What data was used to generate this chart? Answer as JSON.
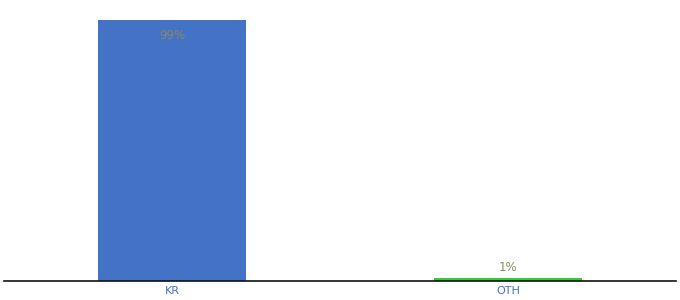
{
  "categories": [
    "KR",
    "OTH"
  ],
  "values": [
    99,
    1
  ],
  "bar_colors": [
    "#4472c4",
    "#33cc33"
  ],
  "label_colors": [
    "#888866",
    "#888866"
  ],
  "labels": [
    "99%",
    "1%"
  ],
  "ylim": [
    0,
    105
  ],
  "background_color": "#ffffff",
  "tick_color": "#4472c4",
  "axis_label_fontsize": 8,
  "bar_label_fontsize": 8.5,
  "bar_positions": [
    0.25,
    0.75
  ],
  "bar_width": 0.22,
  "xlim": [
    0.0,
    1.0
  ]
}
